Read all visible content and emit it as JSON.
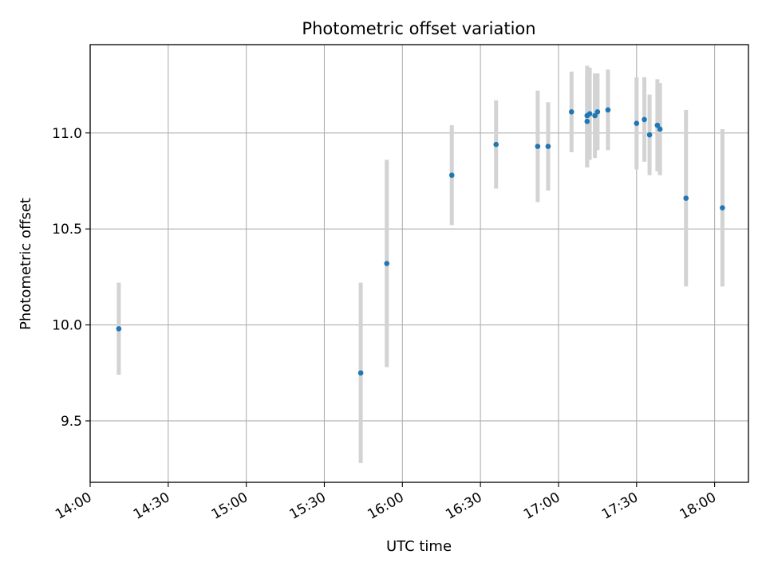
{
  "chart_data": {
    "type": "scatter",
    "title": "Photometric offset variation",
    "xlabel": "UTC time",
    "ylabel": "Photometric offset",
    "x_axis_type": "time",
    "x_ticks": [
      "14:00",
      "14:30",
      "15:00",
      "15:30",
      "16:00",
      "16:30",
      "17:00",
      "17:30",
      "18:00"
    ],
    "y_ticks": [
      9.5,
      10.0,
      10.5,
      11.0
    ],
    "xlim": [
      "14:00",
      "18:13"
    ],
    "ylim": [
      9.18,
      11.46
    ],
    "grid": true,
    "point_color": "#1f77b4",
    "errorbar_color": "#d3d3d3",
    "points": [
      {
        "time": "14:11",
        "y": 9.98,
        "yerr": 0.24
      },
      {
        "time": "15:44",
        "y": 9.75,
        "yerr": 0.47
      },
      {
        "time": "15:54",
        "y": 10.32,
        "yerr": 0.54
      },
      {
        "time": "16:19",
        "y": 10.78,
        "yerr": 0.26
      },
      {
        "time": "16:36",
        "y": 10.94,
        "yerr": 0.23
      },
      {
        "time": "16:52",
        "y": 10.93,
        "yerr": 0.29
      },
      {
        "time": "16:56",
        "y": 10.93,
        "yerr": 0.23
      },
      {
        "time": "17:05",
        "y": 11.11,
        "yerr": 0.21
      },
      {
        "time": "17:11",
        "y": 11.06,
        "yerr": 0.24
      },
      {
        "time": "17:11",
        "y": 11.09,
        "yerr": 0.26
      },
      {
        "time": "17:12",
        "y": 11.1,
        "yerr": 0.24
      },
      {
        "time": "17:14",
        "y": 11.09,
        "yerr": 0.22
      },
      {
        "time": "17:15",
        "y": 11.11,
        "yerr": 0.2
      },
      {
        "time": "17:19",
        "y": 11.12,
        "yerr": 0.21
      },
      {
        "time": "17:30",
        "y": 11.05,
        "yerr": 0.24
      },
      {
        "time": "17:33",
        "y": 11.07,
        "yerr": 0.22
      },
      {
        "time": "17:35",
        "y": 10.99,
        "yerr": 0.21
      },
      {
        "time": "17:38",
        "y": 11.04,
        "yerr": 0.24
      },
      {
        "time": "17:39",
        "y": 11.02,
        "yerr": 0.24
      },
      {
        "time": "17:49",
        "y": 10.66,
        "yerr": 0.46
      },
      {
        "time": "18:03",
        "y": 10.61,
        "yerr": 0.41
      }
    ]
  }
}
